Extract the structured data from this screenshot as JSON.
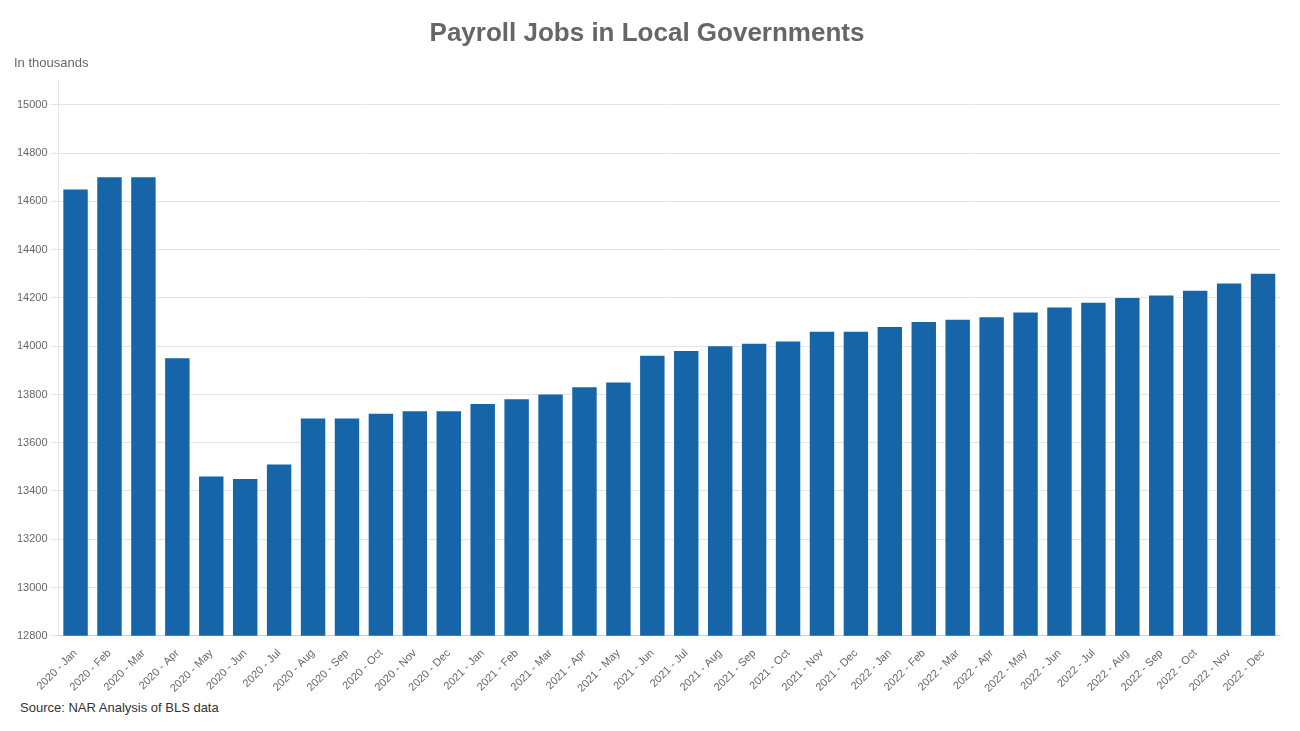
{
  "chart_data": {
    "type": "bar",
    "title": "Payroll Jobs in Local Governments",
    "subtitle": "In thousands",
    "annotations": [
      "Source: NAR Analysis of BLS data"
    ],
    "categories": [
      "2020 - Jan",
      "2020 - Feb",
      "2020 - Mar",
      "2020 - Apr",
      "2020 - May",
      "2020 - Jun",
      "2020 - Jul",
      "2020 - Aug",
      "2020 - Sep",
      "2020 - Oct",
      "2020 - Nov",
      "2020 - Dec",
      "2021 - Jan",
      "2021 - Feb",
      "2021 - Mar",
      "2021 - Apr",
      "2021 - May",
      "2021 - Jun",
      "2021 - Jul",
      "2021 - Aug",
      "2021 - Sep",
      "2021 - Oct",
      "2021 - Nov",
      "2021 - Dec",
      "2022 - Jan",
      "2022 - Feb",
      "2022 - Mar",
      "2022 - Apr",
      "2022 - May",
      "2022 - Jun",
      "2022 - Jul",
      "2022 - Aug",
      "2022 - Sep",
      "2022 - Oct",
      "2022 - Nov",
      "2022 - Dec"
    ],
    "values": [
      14650,
      14700,
      14700,
      13950,
      13460,
      13450,
      13510,
      13700,
      13700,
      13720,
      13730,
      13730,
      13760,
      13780,
      13800,
      13830,
      13850,
      13960,
      13980,
      14000,
      14010,
      14020,
      14060,
      14060,
      14080,
      14100,
      14110,
      14120,
      14140,
      14160,
      14180,
      14200,
      14210,
      14230,
      14260,
      14300
    ],
    "color": "#1565A8",
    "ylim": [
      12800,
      15100
    ],
    "yticks": [
      12800,
      13000,
      13200,
      13400,
      13600,
      13800,
      14000,
      14200,
      14400,
      14600,
      14800,
      15000
    ],
    "grid": true
  }
}
